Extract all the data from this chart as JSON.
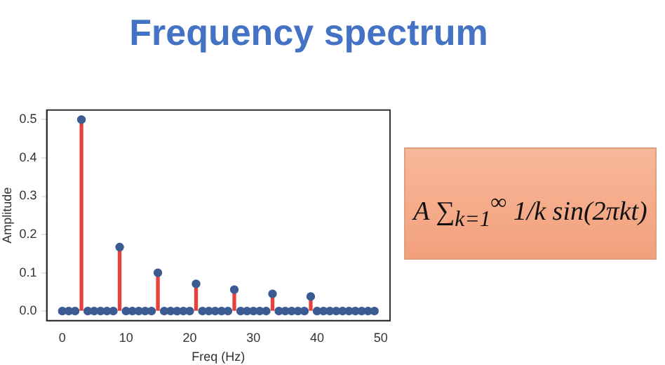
{
  "chart_data": {
    "type": "lollipop",
    "title": "Frequency spectrum",
    "xlabel": "Freq (Hz)",
    "ylabel": "Amplitude",
    "x": [
      0,
      1,
      2,
      3,
      4,
      5,
      6,
      7,
      8,
      9,
      10,
      11,
      12,
      13,
      14,
      15,
      16,
      17,
      18,
      19,
      20,
      21,
      22,
      23,
      24,
      25,
      26,
      27,
      28,
      29,
      30,
      31,
      32,
      33,
      34,
      35,
      36,
      37,
      38,
      39,
      40,
      41,
      42,
      43,
      44,
      45,
      46,
      47,
      48,
      49
    ],
    "series": [
      {
        "type": "bar",
        "color": "#e8413c",
        "values": [
          0,
          0,
          0,
          0.5,
          0,
          0,
          0,
          0,
          0,
          0.167,
          0,
          0,
          0,
          0,
          0,
          0.1,
          0,
          0,
          0,
          0,
          0,
          0.071,
          0,
          0,
          0,
          0,
          0,
          0.056,
          0,
          0,
          0,
          0,
          0,
          0.045,
          0,
          0,
          0,
          0,
          0,
          0.038,
          0,
          0,
          0,
          0,
          0,
          0,
          0,
          0,
          0,
          0
        ]
      },
      {
        "color": "#3b5b92",
        "values": [
          0,
          0,
          0,
          0.5,
          0,
          0,
          0,
          0,
          0,
          0.167,
          0,
          0,
          0,
          0,
          0,
          0.1,
          0,
          0,
          0,
          0,
          0,
          0.071,
          0,
          0,
          0,
          0,
          0,
          0.056,
          0,
          0,
          0,
          0,
          0,
          0.045,
          0,
          0,
          0,
          0,
          0,
          0.038,
          0,
          0,
          0,
          0,
          0,
          0,
          0,
          0,
          0,
          0
        ]
      }
    ],
    "marker": "circle",
    "grid": false,
    "legend": false,
    "xlim": [
      -2.45,
      51.45
    ],
    "xticks": [
      0,
      10,
      20,
      30,
      40,
      50
    ],
    "ylim": [
      -0.025,
      0.525
    ],
    "yticks": [
      {
        "value": 0,
        "label": "0.0"
      },
      0.1,
      0.2,
      0.3,
      0.4,
      0.5
    ],
    "annotations": [
      "A ∑$_{k=1}$$^{∞}$ 1/k sin(2πkt)"
    ]
  }
}
